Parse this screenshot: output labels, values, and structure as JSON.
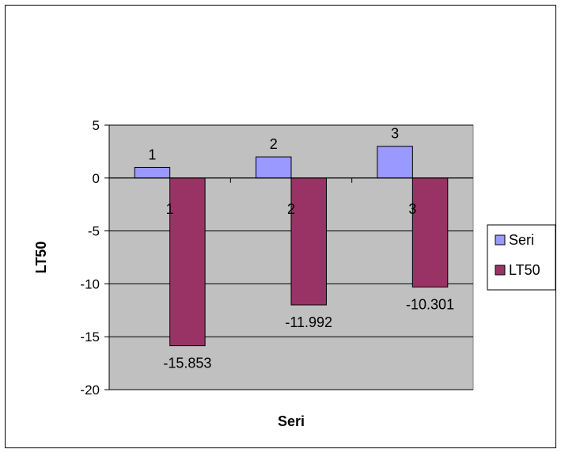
{
  "chart_data": {
    "type": "bar",
    "categories": [
      "1",
      "2",
      "3"
    ],
    "series": [
      {
        "name": "Seri",
        "values": [
          1,
          2,
          3
        ],
        "color": "#9999ff"
      },
      {
        "name": "LT50",
        "values": [
          -15.853,
          -11.992,
          -10.301
        ],
        "color": "#993366"
      }
    ],
    "data_labels": {
      "Seri": [
        "1",
        "2",
        "3"
      ],
      "LT50": [
        "-15.853",
        "-11.992",
        "-10.301"
      ]
    },
    "xlabel": "Seri",
    "ylabel": "LT50",
    "ylim": [
      -20,
      5
    ],
    "yticks": [
      5,
      0,
      -5,
      -10,
      -15,
      -20
    ],
    "grid": true,
    "legend_position": "right",
    "plot_background": "#c0c0c0"
  }
}
